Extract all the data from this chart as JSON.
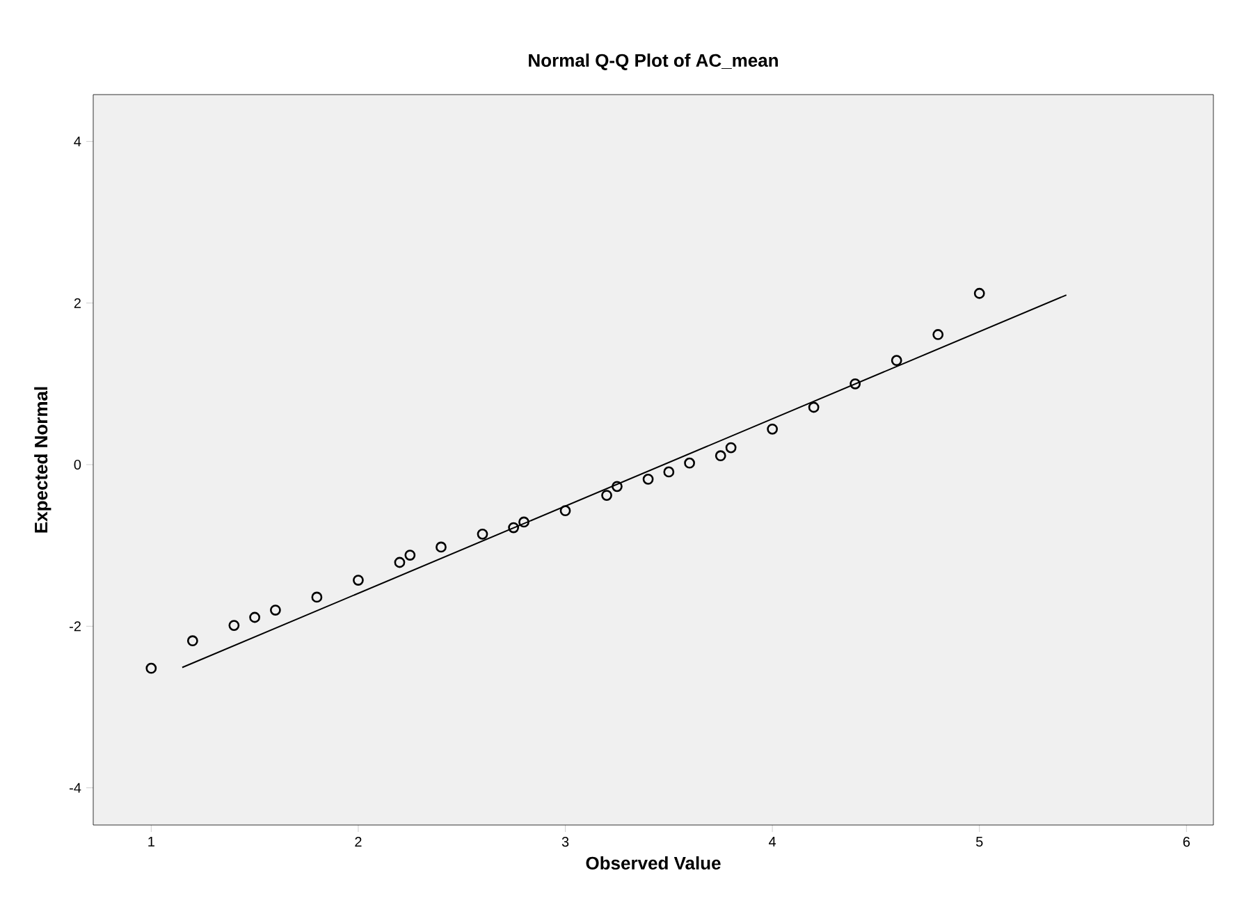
{
  "chart_data": {
    "type": "scatter",
    "title": "Normal Q-Q Plot of AC_mean",
    "xlabel": "Observed Value",
    "ylabel": "Expected Normal",
    "xlim": [
      0.72,
      6.13
    ],
    "ylim": [
      -4.46,
      4.58
    ],
    "xticks": [
      1,
      2,
      3,
      4,
      5,
      6
    ],
    "yticks": [
      -4,
      -2,
      0,
      2,
      4
    ],
    "grid": false,
    "series": [
      {
        "color": "#000000",
        "marker": "circle",
        "x": [
          1.0,
          1.2,
          1.4,
          1.5,
          1.6,
          1.8,
          2.0,
          2.2,
          2.25,
          2.4,
          2.6,
          2.75,
          2.8,
          3.0,
          3.2,
          3.25,
          3.4,
          3.5,
          3.6,
          3.75,
          3.8,
          4.0,
          4.2,
          4.4,
          4.6,
          4.8,
          5.0
        ],
        "values": [
          -2.52,
          -2.18,
          -1.99,
          -1.89,
          -1.8,
          -1.64,
          -1.43,
          -1.21,
          -1.12,
          -1.02,
          -0.86,
          -0.78,
          -0.71,
          -0.57,
          -0.38,
          -0.27,
          -0.18,
          -0.09,
          0.02,
          0.11,
          0.21,
          0.44,
          0.71,
          1.0,
          1.29,
          1.61,
          2.12
        ]
      },
      {
        "type": "line",
        "color": "#000000",
        "marker": "none",
        "line_style": "solid",
        "x": [
          1.15,
          5.42
        ],
        "values": [
          -2.51,
          2.1
        ]
      }
    ]
  }
}
